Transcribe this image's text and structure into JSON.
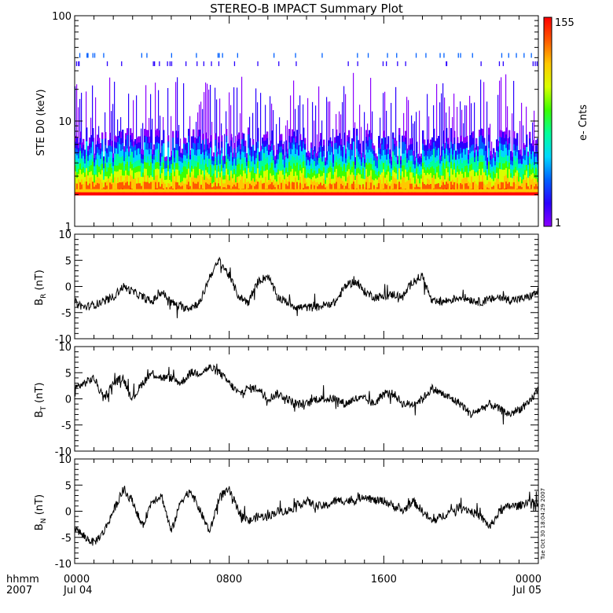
{
  "chart_data": [
    {
      "type": "heatmap",
      "title": "STEREO-B IMPACT Summary Plot",
      "ylabel": "STE D0 (keV)",
      "yscale": "log",
      "ylim": [
        1,
        100
      ],
      "ytick_labels": [
        "1",
        "10",
        "100"
      ],
      "colorbar": {
        "label": "e- Cnts",
        "range": [
          1,
          155
        ],
        "tick_labels": [
          "1",
          "155"
        ],
        "colormap": [
          "#8a00ff",
          "#2a00ff",
          "#0060ff",
          "#00d8ff",
          "#00ff9a",
          "#3cff00",
          "#d8ff00",
          "#ffc800",
          "#ff5a00",
          "#ff0000"
        ]
      },
      "band_low_keV": 2.0,
      "typical_upper_keV": 6,
      "scattered_high_keV": [
        35,
        42
      ]
    },
    {
      "type": "line",
      "ylabel": "B_R (nT)",
      "ylim": [
        -10,
        10
      ],
      "ytick_labels": [
        "-10",
        "-5",
        "0",
        "5",
        "10"
      ],
      "series": [
        {
          "x": [
            0,
            0.5,
            1,
            1.5,
            2,
            2.5,
            3,
            3.5,
            4,
            4.5,
            5,
            5.5,
            6,
            6.5,
            7,
            7.5,
            8,
            8.5,
            9,
            9.5,
            10,
            10.5,
            11,
            11.5,
            12,
            12.5,
            13,
            13.5,
            14,
            14.5,
            15,
            15.5,
            16,
            16.5,
            17,
            17.5,
            18,
            18.5,
            19,
            19.5,
            20,
            20.5,
            21,
            21.5,
            22,
            22.5,
            23,
            23.5,
            24
          ],
          "values": [
            -3,
            -4,
            -3.5,
            -3,
            -2,
            0,
            -1,
            -2,
            -3,
            -1,
            -3,
            -4,
            -4,
            -3,
            2,
            5,
            2,
            -2,
            -3,
            1,
            2,
            -2,
            -3,
            -4,
            -4,
            -4,
            -3.5,
            -3,
            0,
            1,
            -1,
            -2,
            -2,
            -1.5,
            -2,
            1,
            2,
            -3,
            -3,
            -2.5,
            -2,
            -2.5,
            -3,
            -2.5,
            -2,
            -2.5,
            -2.5,
            -2,
            -1
          ]
        }
      ]
    },
    {
      "type": "line",
      "ylabel": "B_T (nT)",
      "ylim": [
        -10,
        10
      ],
      "ytick_labels": [
        "-10",
        "-5",
        "0",
        "5",
        "10"
      ],
      "series": [
        {
          "x": [
            0,
            0.5,
            1,
            1.5,
            2,
            2.5,
            3,
            3.5,
            4,
            4.5,
            5,
            5.5,
            6,
            6.5,
            7,
            7.5,
            8,
            8.5,
            9,
            9.5,
            10,
            10.5,
            11,
            11.5,
            12,
            12.5,
            13,
            13.5,
            14,
            14.5,
            15,
            15.5,
            16,
            16.5,
            17,
            17.5,
            18,
            18.5,
            19,
            19.5,
            20,
            20.5,
            21,
            21.5,
            22,
            22.5,
            23,
            23.5,
            24
          ],
          "values": [
            2,
            3,
            4,
            0,
            3,
            4,
            0,
            3,
            5,
            4,
            4,
            3,
            5,
            5,
            6,
            5,
            3,
            1,
            2,
            2,
            0,
            1,
            0,
            -1,
            -1,
            0,
            0,
            0,
            -1,
            0,
            0,
            -1,
            1,
            1,
            -1,
            -1,
            0,
            2,
            1,
            0,
            -1,
            -3,
            -2,
            -1,
            -2,
            -3,
            -2,
            -1,
            2
          ]
        }
      ]
    },
    {
      "type": "line",
      "ylabel": "B_N (nT)",
      "ylim": [
        -10,
        10
      ],
      "ytick_labels": [
        "-10",
        "-5",
        "0",
        "5",
        "10"
      ],
      "series": [
        {
          "x": [
            0,
            0.5,
            1,
            1.5,
            2,
            2.5,
            3,
            3.5,
            4,
            4.5,
            5,
            5.5,
            6,
            6.5,
            7,
            7.5,
            8,
            8.5,
            9,
            9.5,
            10,
            10.5,
            11,
            11.5,
            12,
            12.5,
            13,
            13.5,
            14,
            14.5,
            15,
            15.5,
            16,
            16.5,
            17,
            17.5,
            18,
            18.5,
            19,
            19.5,
            20,
            20.5,
            21,
            21.5,
            22,
            22.5,
            23,
            23.5,
            24
          ],
          "values": [
            -3,
            -5,
            -6,
            -4,
            0,
            4,
            2,
            -3,
            2,
            3,
            -4,
            2,
            4,
            0,
            -4,
            3,
            4,
            0,
            -2,
            -1,
            -1,
            0,
            0,
            1,
            2,
            1,
            1,
            2,
            2,
            2,
            3,
            2,
            2,
            1,
            0,
            2,
            0,
            -2,
            -1,
            0,
            1,
            0,
            -1,
            -3,
            0,
            1,
            1,
            2,
            1
          ]
        }
      ]
    }
  ],
  "yaxis_labels": [
    {
      "main": "STE D0 (keV)",
      "sub": ""
    },
    {
      "main": "B",
      "sub": "R",
      "unit": " (nT)"
    },
    {
      "main": "B",
      "sub": "T",
      "unit": " (nT)"
    },
    {
      "main": "B",
      "sub": "N",
      "unit": " (nT)"
    }
  ],
  "xaxis": {
    "label_line1": "hhmm",
    "label_line2": "2007",
    "ticks": [
      {
        "hour": 0,
        "line1": "0000",
        "line2": "Jul 04"
      },
      {
        "hour": 8,
        "line1": "0800",
        "line2": ""
      },
      {
        "hour": 16,
        "line1": "1600",
        "line2": ""
      },
      {
        "hour": 24,
        "line1": "0000",
        "line2": "Jul 05"
      }
    ],
    "range_hours": [
      0,
      24
    ]
  },
  "timestamp": "Tue Oct 30 18:04:29 2007"
}
